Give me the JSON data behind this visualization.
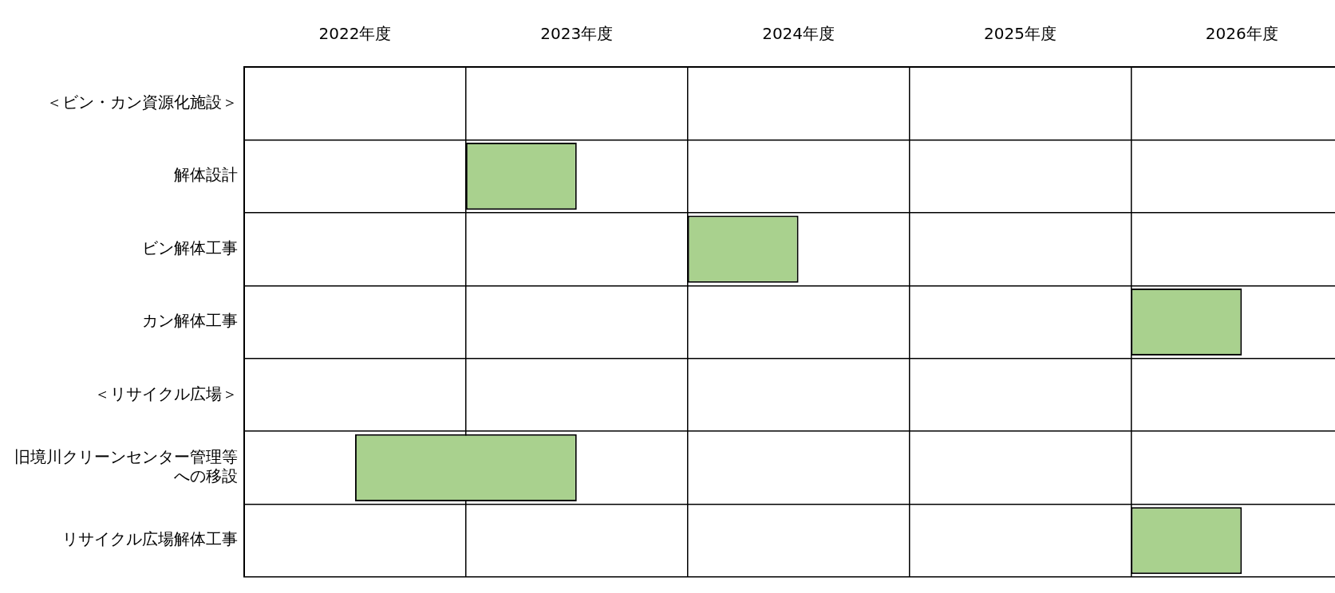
{
  "chart_data": {
    "type": "bar",
    "orientation": "horizontal",
    "categories": [
      "＜ビン・カン資源化施設＞",
      "解体設計",
      "ビン解体工事",
      "カン解体工事",
      "＜リサイクル広場＞",
      "旧境川クリーンセンター管理等への移設",
      "リサイクル広場解体工事"
    ],
    "base": [
      null,
      2023,
      2024,
      2026,
      null,
      2022.5,
      2026
    ],
    "values": [
      null,
      0.5,
      0.5,
      0.5,
      null,
      1,
      0.5
    ],
    "color": "#a9d18e",
    "xlim": [
      2022,
      2026.92
    ],
    "xticks": [
      {
        "value": 2022,
        "label": null
      },
      {
        "value": 2022.5,
        "label": "2022年度"
      },
      {
        "value": 2023,
        "label": null
      },
      {
        "value": 2023.5,
        "label": "2023年度"
      },
      {
        "value": 2024,
        "label": null
      },
      {
        "value": 2024.5,
        "label": "2024年度"
      },
      {
        "value": 2025,
        "label": null
      },
      {
        "value": 2025.5,
        "label": "2025年度"
      },
      {
        "value": 2026,
        "label": null
      },
      {
        "value": 2026.5,
        "label": "2026年度"
      }
    ],
    "grid": true
  }
}
